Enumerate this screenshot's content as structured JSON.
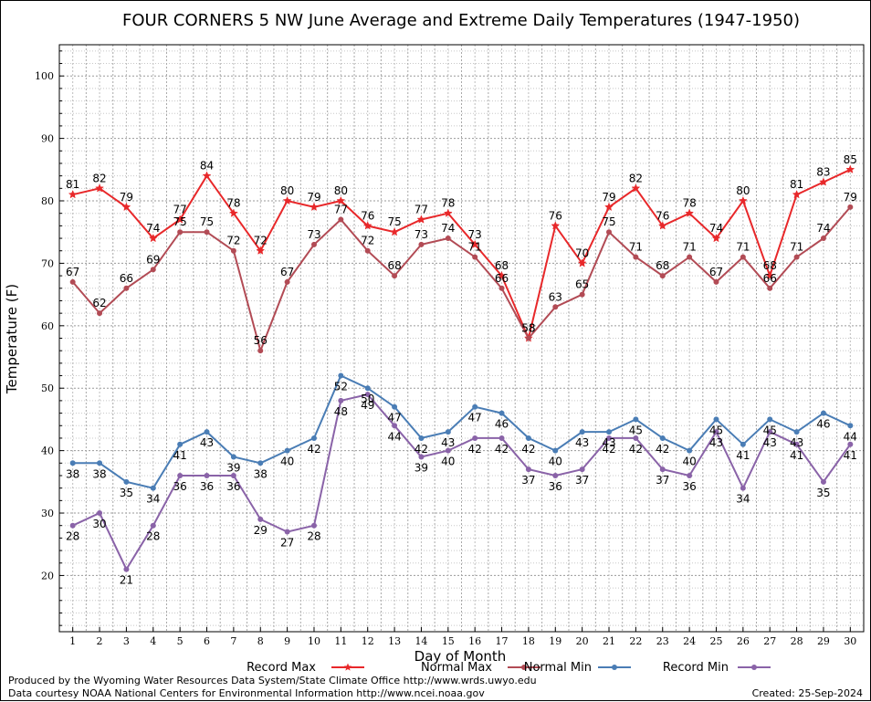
{
  "chart_data": {
    "type": "line",
    "title": "FOUR CORNERS 5 NW June Average and Extreme Daily Temperatures (1947-1950)",
    "xlabel": "Day of Month",
    "ylabel": "Temperature (F)",
    "x": [
      1,
      2,
      3,
      4,
      5,
      6,
      7,
      8,
      9,
      10,
      11,
      12,
      13,
      14,
      15,
      16,
      17,
      18,
      19,
      20,
      21,
      22,
      23,
      24,
      25,
      26,
      27,
      28,
      29,
      30
    ],
    "xlim": [
      0.5,
      30.5
    ],
    "ylim": [
      11,
      105
    ],
    "yticks": [
      20,
      30,
      40,
      50,
      60,
      70,
      80,
      90,
      100
    ],
    "grid": true,
    "legend_placement": "bottom",
    "series": [
      {
        "name": "Record Max",
        "color": "#e8282a",
        "marker": "star",
        "values": [
          81,
          82,
          79,
          74,
          77,
          84,
          78,
          72,
          80,
          79,
          80,
          76,
          75,
          77,
          78,
          73,
          68,
          58,
          76,
          70,
          79,
          82,
          76,
          78,
          74,
          80,
          68,
          81,
          83,
          85
        ]
      },
      {
        "name": "Normal Max",
        "color": "#b24b55",
        "marker": "circle",
        "values": [
          67,
          62,
          66,
          69,
          75,
          75,
          72,
          56,
          67,
          73,
          77,
          72,
          68,
          73,
          74,
          71,
          66,
          58,
          63,
          65,
          75,
          71,
          68,
          71,
          67,
          71,
          66,
          71,
          74,
          79
        ]
      },
      {
        "name": "Normal Min",
        "color": "#4a7db5",
        "marker": "circle",
        "values": [
          38,
          38,
          35,
          34,
          41,
          43,
          39,
          38,
          40,
          42,
          52,
          50,
          47,
          42,
          43,
          47,
          46,
          42,
          40,
          43,
          43,
          45,
          42,
          40,
          45,
          41,
          45,
          43,
          46,
          44
        ]
      },
      {
        "name": "Record Min",
        "color": "#8a63a8",
        "marker": "circle",
        "values": [
          28,
          30,
          21,
          28,
          36,
          36,
          36,
          29,
          27,
          28,
          48,
          49,
          44,
          39,
          40,
          42,
          42,
          37,
          36,
          37,
          42,
          42,
          37,
          36,
          43,
          34,
          43,
          41,
          35,
          41
        ]
      }
    ]
  },
  "footer": {
    "produced_by": "Produced by the Wyoming Water Resources Data System/State Climate Office http://www.wrds.uwyo.edu",
    "courtesy": "Data courtesy NOAA National Centers for Environmental Information http://www.ncei.noaa.gov",
    "created": "Created:  25-Sep-2024"
  }
}
